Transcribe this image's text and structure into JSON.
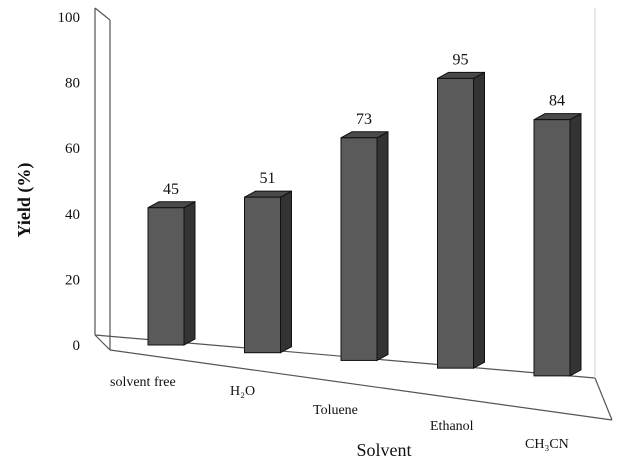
{
  "chart_data": {
    "type": "bar",
    "title": "",
    "xlabel": "Solvent",
    "ylabel": "Yield (%)",
    "categories": [
      "solvent free",
      "H₂O",
      "Toluene",
      "Ethanol",
      "CH₃CN"
    ],
    "values": [
      45,
      51,
      73,
      95,
      84
    ],
    "data_labels": [
      "45",
      "51",
      "73",
      "95",
      "84"
    ],
    "ylim": [
      0,
      100
    ],
    "yticks": [
      "0",
      "20",
      "40",
      "60",
      "80",
      "100"
    ],
    "grid": false,
    "legend": "none",
    "style": "3d-bar"
  },
  "colors": {
    "bar_front": "#5a5a5a",
    "bar_side": "#333333",
    "bar_top": "#4a4a4a",
    "axis": "#555555"
  }
}
